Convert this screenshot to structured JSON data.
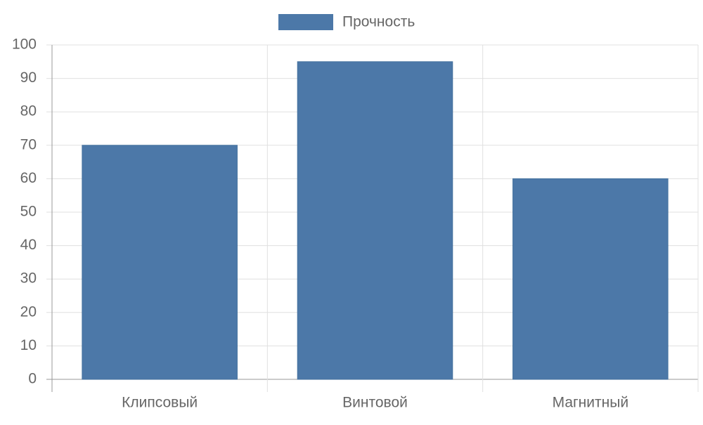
{
  "chart_data": {
    "type": "bar",
    "categories": [
      "Клипсовый",
      "Винтовой",
      "Магнитный"
    ],
    "series": [
      {
        "name": "Прочность",
        "color": "#4c78a8",
        "values": [
          70,
          95,
          60
        ]
      }
    ],
    "ylim": [
      0,
      100
    ],
    "yticks": [
      0,
      10,
      20,
      30,
      40,
      50,
      60,
      70,
      80,
      90,
      100
    ],
    "grid": true,
    "legend": "top"
  }
}
